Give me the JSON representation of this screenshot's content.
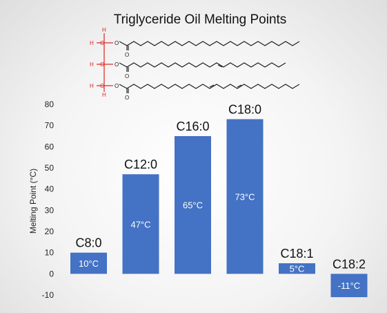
{
  "chart_data": {
    "type": "bar",
    "title": "Triglyceride Oil Melting Points",
    "xlabel": "",
    "ylabel": "Melting Point (°C)",
    "ylim": [
      -10,
      80
    ],
    "yticks": [
      -10,
      0,
      10,
      20,
      30,
      40,
      50,
      60,
      70,
      80
    ],
    "categories": [
      "C8:0",
      "C12:0",
      "C16:0",
      "C18:0",
      "C18:1",
      "C18:2"
    ],
    "values": [
      10,
      47,
      65,
      73,
      5,
      -11
    ],
    "data_labels": [
      "10°C",
      "47°C",
      "65°C",
      "73°C",
      "5°C",
      "-11°C"
    ],
    "grid": false,
    "bar_color": "#4472c4",
    "molecule_image": "triglyceride-structure-diagram"
  }
}
